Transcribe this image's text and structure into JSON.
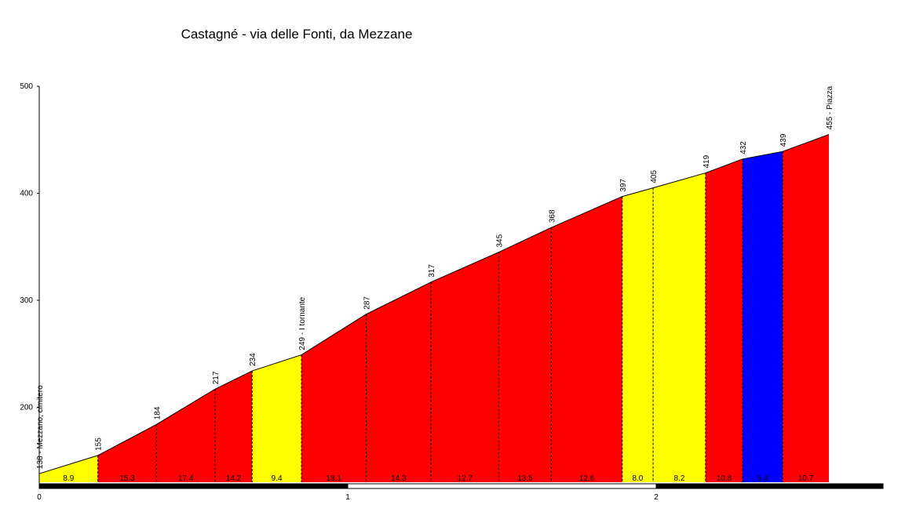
{
  "chart_data": {
    "type": "area",
    "title": "Castagné - via delle Fonti, da Mezzane",
    "xlabel": "",
    "ylabel": "",
    "xlim": [
      0,
      2.74
    ],
    "ylim": [
      130,
      500
    ],
    "y_ticks": [
      200,
      300,
      400,
      500
    ],
    "x_ticks": [
      0,
      1,
      2
    ],
    "points": [
      {
        "x": 0.0,
        "y": 138,
        "label": "138 - Mezzano, cimitero"
      },
      {
        "x": 0.19,
        "y": 155,
        "label": "155"
      },
      {
        "x": 0.38,
        "y": 184,
        "label": "184"
      },
      {
        "x": 0.57,
        "y": 217,
        "label": "217"
      },
      {
        "x": 0.69,
        "y": 234,
        "label": "234"
      },
      {
        "x": 0.85,
        "y": 249,
        "label": "249 - I tornante"
      },
      {
        "x": 1.06,
        "y": 287,
        "label": "287"
      },
      {
        "x": 1.27,
        "y": 317,
        "label": "317"
      },
      {
        "x": 1.49,
        "y": 345,
        "label": "345"
      },
      {
        "x": 1.66,
        "y": 368,
        "label": "368"
      },
      {
        "x": 1.89,
        "y": 397,
        "label": "397"
      },
      {
        "x": 1.99,
        "y": 405,
        "label": "405"
      },
      {
        "x": 2.16,
        "y": 419,
        "label": "419"
      },
      {
        "x": 2.28,
        "y": 432,
        "label": "432"
      },
      {
        "x": 2.41,
        "y": 439,
        "label": "439"
      },
      {
        "x": 2.56,
        "y": 455,
        "label": "455 - Piazza"
      }
    ],
    "segments": [
      {
        "gradient": "8.9",
        "color": "#ffff00"
      },
      {
        "gradient": "15.3",
        "color": "#ff0000"
      },
      {
        "gradient": "17.4",
        "color": "#ff0000"
      },
      {
        "gradient": "14.2",
        "color": "#ff0000"
      },
      {
        "gradient": "9.4",
        "color": "#ffff00"
      },
      {
        "gradient": "18.1",
        "color": "#ff0000"
      },
      {
        "gradient": "14.3",
        "color": "#ff0000"
      },
      {
        "gradient": "12.7",
        "color": "#ff0000"
      },
      {
        "gradient": "13.5",
        "color": "#ff0000"
      },
      {
        "gradient": "12.6",
        "color": "#ff0000"
      },
      {
        "gradient": "8.0",
        "color": "#ffff00"
      },
      {
        "gradient": "8.2",
        "color": "#ffff00"
      },
      {
        "gradient": "10.8",
        "color": "#ff0000"
      },
      {
        "gradient": "5.4",
        "color": "#0000ff"
      },
      {
        "gradient": "10.7",
        "color": "#ff0000"
      }
    ]
  }
}
